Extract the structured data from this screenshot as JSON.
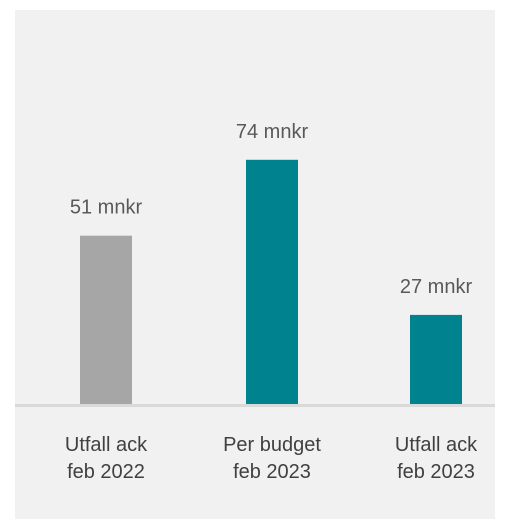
{
  "chart_data": {
    "type": "bar",
    "title": "",
    "xlabel": "",
    "ylabel": "",
    "ylim": [
      0,
      80
    ],
    "unit": "mnkr",
    "categories": [
      [
        "Utfall ack",
        "feb 2022"
      ],
      [
        "Per budget",
        "feb 2023"
      ],
      [
        "Utfall ack",
        "feb 2023"
      ]
    ],
    "values": [
      51,
      74,
      27
    ],
    "value_labels": [
      "51 mnkr",
      "74 mnkr",
      "27 mnkr"
    ],
    "colors": [
      "#a6a6a6",
      "#00838f",
      "#00838f"
    ],
    "baseline_color": "#d9d9d9",
    "grid": false,
    "legend": "none"
  }
}
